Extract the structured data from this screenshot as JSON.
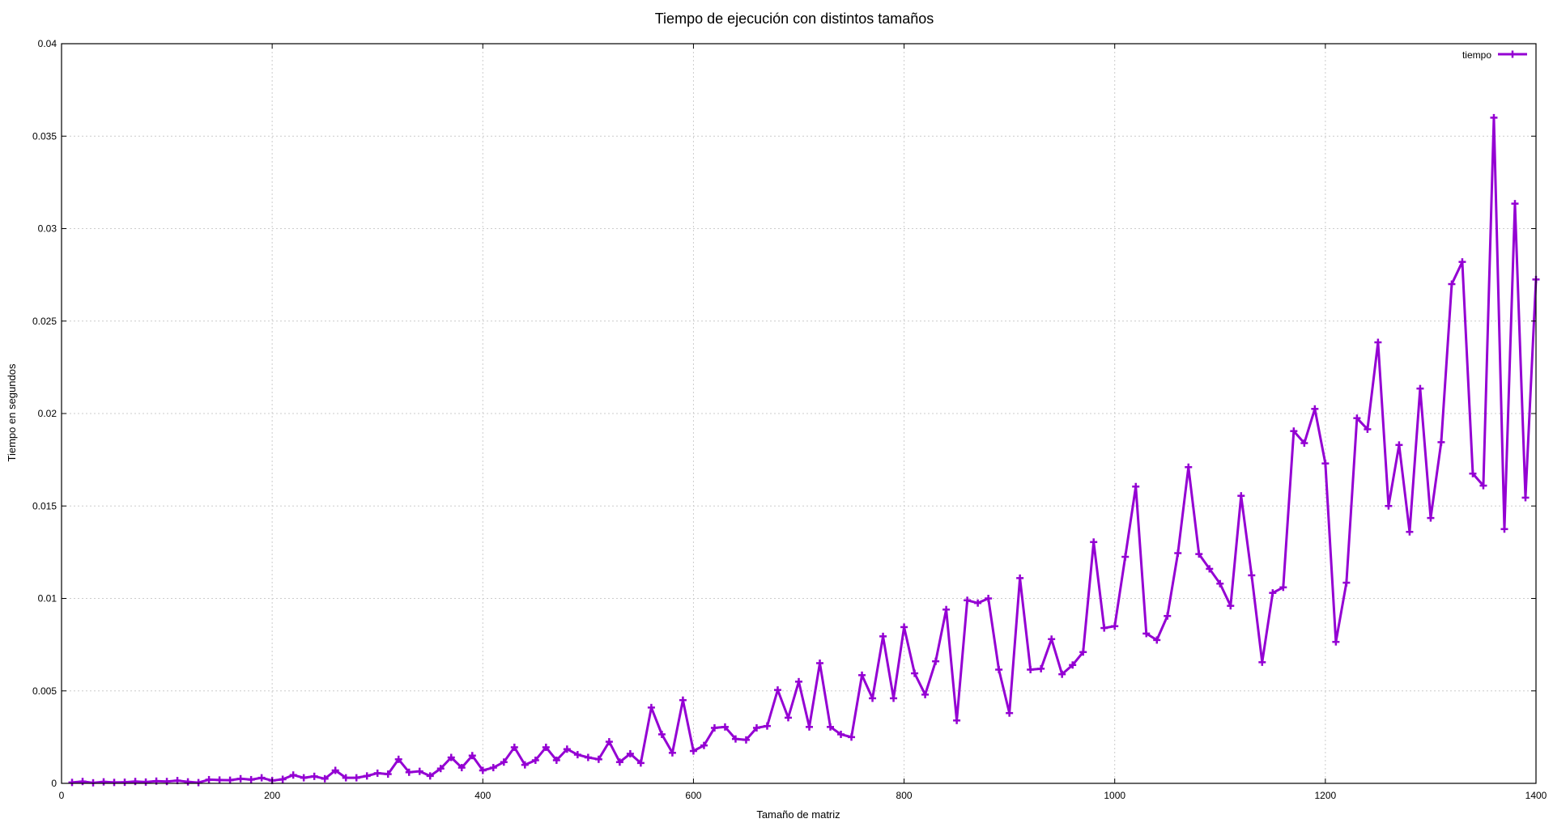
{
  "chart_data": {
    "type": "line",
    "title": "Tiempo de ejecución con distintos tamaños",
    "xlabel": "Tamaño de matriz",
    "ylabel": "Tiempo en segundos",
    "xlim": [
      0,
      1400
    ],
    "ylim": [
      0,
      0.04
    ],
    "xticks": [
      0,
      200,
      400,
      600,
      800,
      1000,
      1200,
      1400
    ],
    "yticks": [
      0,
      0.005,
      0.01,
      0.015,
      0.02,
      0.025,
      0.03,
      0.035,
      0.04
    ],
    "xtick_labels": [
      "0",
      "200",
      "400",
      "600",
      "800",
      "1000",
      "1200",
      "1400"
    ],
    "ytick_labels": [
      "0",
      "0.005",
      "0.01",
      "0.015",
      "0.02",
      "0.025",
      "0.03",
      "0.035",
      "0.04"
    ],
    "grid": true,
    "legend_position": "top-right",
    "series": [
      {
        "name": "tiempo",
        "color": "#9400d3",
        "marker": "plus",
        "x": [
          10,
          20,
          30,
          40,
          50,
          60,
          70,
          80,
          90,
          100,
          110,
          120,
          130,
          140,
          150,
          160,
          170,
          180,
          190,
          200,
          210,
          220,
          230,
          240,
          250,
          260,
          270,
          280,
          290,
          300,
          310,
          320,
          330,
          340,
          350,
          360,
          370,
          380,
          390,
          400,
          410,
          420,
          430,
          440,
          450,
          460,
          470,
          480,
          490,
          500,
          510,
          520,
          530,
          540,
          550,
          560,
          570,
          580,
          590,
          600,
          610,
          620,
          630,
          640,
          650,
          660,
          670,
          680,
          690,
          700,
          710,
          720,
          730,
          740,
          750,
          760,
          770,
          780,
          790,
          800,
          810,
          820,
          830,
          840,
          850,
          860,
          870,
          880,
          890,
          900,
          910,
          920,
          930,
          940,
          950,
          960,
          970,
          980,
          990,
          1000,
          1010,
          1020,
          1030,
          1040,
          1050,
          1060,
          1070,
          1080,
          1090,
          1100,
          1110,
          1120,
          1130,
          1140,
          1150,
          1160,
          1170,
          1180,
          1190,
          1200,
          1210,
          1220,
          1230,
          1240,
          1250,
          1260,
          1270,
          1280,
          1290,
          1300,
          1310,
          1320,
          1330,
          1340,
          1350,
          1360,
          1370,
          1380,
          1390,
          1400
        ],
        "values": [
          5e-05,
          0.0001,
          3e-05,
          8e-05,
          5e-05,
          6e-05,
          0.0001,
          7e-05,
          0.00012,
          0.0001,
          0.00015,
          8e-05,
          4e-05,
          0.0002,
          0.00018,
          0.00017,
          0.00025,
          0.0002,
          0.0003,
          0.00015,
          0.00022,
          0.00045,
          0.0003,
          0.00038,
          0.00025,
          0.0007,
          0.0003,
          0.0003,
          0.0004,
          0.00055,
          0.0005,
          0.0013,
          0.0006,
          0.00065,
          0.0004,
          0.0008,
          0.0014,
          0.00085,
          0.0015,
          0.0007,
          0.00085,
          0.00115,
          0.00195,
          0.001,
          0.00125,
          0.00195,
          0.00125,
          0.00185,
          0.00155,
          0.0014,
          0.0013,
          0.00225,
          0.00115,
          0.0016,
          0.0011,
          0.0041,
          0.00265,
          0.00165,
          0.0045,
          0.00175,
          0.00205,
          0.003,
          0.00305,
          0.0024,
          0.00235,
          0.003,
          0.0031,
          0.00505,
          0.00355,
          0.0055,
          0.00305,
          0.0065,
          0.00305,
          0.00265,
          0.0025,
          0.00585,
          0.0046,
          0.00795,
          0.0046,
          0.00845,
          0.00595,
          0.0048,
          0.0066,
          0.0094,
          0.0034,
          0.0099,
          0.00975,
          0.01,
          0.00615,
          0.0038,
          0.0111,
          0.00615,
          0.0062,
          0.0078,
          0.0059,
          0.0064,
          0.0071,
          0.01305,
          0.0084,
          0.0085,
          0.01225,
          0.01605,
          0.0081,
          0.00775,
          0.00905,
          0.01245,
          0.0171,
          0.0124,
          0.0116,
          0.0108,
          0.0096,
          0.01555,
          0.01125,
          0.00655,
          0.0103,
          0.0106,
          0.01905,
          0.0184,
          0.02025,
          0.0173,
          0.00765,
          0.01085,
          0.01975,
          0.01915,
          0.02385,
          0.015,
          0.0183,
          0.0136,
          0.02135,
          0.01435,
          0.01845,
          0.027,
          0.0282,
          0.01675,
          0.0161,
          0.036,
          0.01375,
          0.03135,
          0.01545,
          0.02725
        ]
      }
    ]
  }
}
